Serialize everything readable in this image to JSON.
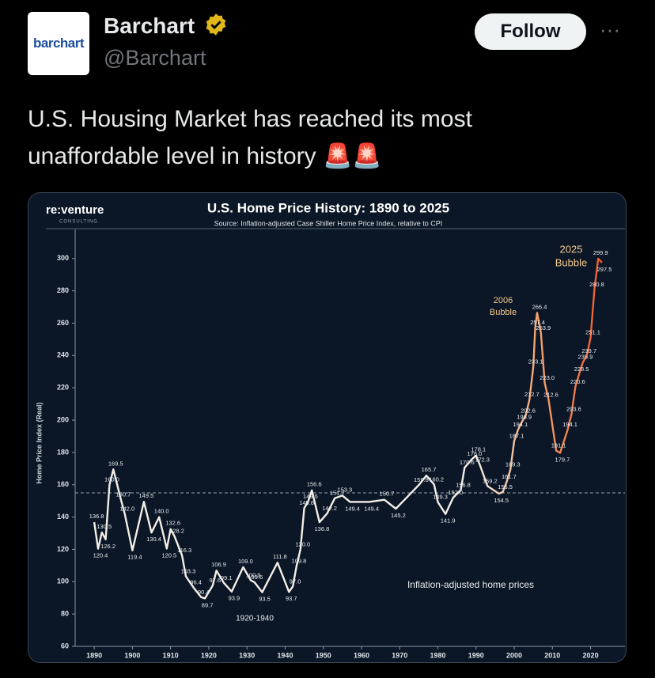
{
  "author": {
    "avatar_text": "barchart",
    "name": "Barchart",
    "handle": "@Barchart"
  },
  "follow_button": "Follow",
  "more_button": "···",
  "tweet": {
    "text": "U.S. Housing Market has reached its most unaffordable level in history 🚨🚨"
  },
  "chart_data": {
    "type": "line",
    "brand": "re:venture",
    "brand_sub": "CONSULTING",
    "title": "U.S. Home Price History: 1890 to 2025",
    "subtitle": "Source: Inflation-adjusted Case Shiller Home Price Index, relative to CPI",
    "y_label": "Home Price Index (Real)",
    "annotations": [
      "2025",
      "Bubble",
      "2006",
      "Bubble",
      "1920-1940"
    ],
    "x": [
      1890,
      1891,
      1892,
      1893,
      1894,
      1895,
      1897,
      1898,
      1900,
      1903,
      1905,
      1907,
      1909,
      1910,
      1911,
      1913,
      1914,
      1916,
      1918,
      1919,
      1921,
      1922,
      1924,
      1926,
      1929,
      1931,
      1932,
      1934,
      1938,
      1941,
      1942,
      1943,
      1944,
      1945,
      1946,
      1947,
      1949,
      1951,
      1953,
      1955,
      1957,
      1962,
      1966,
      1969,
      1975,
      1977,
      1979,
      1980,
      1982,
      1984,
      1986,
      1987,
      1989,
      1990,
      1991,
      1993,
      1996,
      1997,
      1998,
      1999,
      2000,
      2001,
      2002,
      2003,
      2004,
      2005,
      2005.5,
      2006,
      2007,
      2008,
      2009,
      2011,
      2012,
      2014,
      2015,
      2016,
      2017,
      2018,
      2019,
      2020,
      2021,
      2022,
      2023
    ],
    "series": [
      {
        "name": "Inflation-adjusted home prices",
        "color": [
          "#f3eee6",
          "#f4a06a",
          "#ef5a2b"
        ],
        "values": [
          136.8,
          120.4,
          130.5,
          126.2,
          160.0,
          169.5,
          150.7,
          142.0,
          119.4,
          149.5,
          130.4,
          140.0,
          120.5,
          132.6,
          128.2,
          116.3,
          103.3,
          96.4,
          90.4,
          89.7,
          97.6,
          106.9,
          99.1,
          93.9,
          109.0,
          100.9,
          99.6,
          93.5,
          111.8,
          93.7,
          97.0,
          109.8,
          120.0,
          145.6,
          149.5,
          156.6,
          136.8,
          142.2,
          151.7,
          153.3,
          149.4,
          149.4,
          150.7,
          145.2,
          159.8,
          165.7,
          160.2,
          149.3,
          141.9,
          152.0,
          156.8,
          170.6,
          176.0,
          178.1,
          172.3,
          159.2,
          154.5,
          155.5,
          161.7,
          169.3,
          187.1,
          194.1,
          198.9,
          202.6,
          212.7,
          233.1,
          257.4,
          266.4,
          253.9,
          223.0,
          212.6,
          181.1,
          179.7,
          194.1,
          203.6,
          220.6,
          228.5,
          235.9,
          239.7,
          251.1,
          280.8,
          299.9,
          297.5
        ],
        "value_labels": [
          "136.8",
          "120.4",
          "130.5",
          "126.2",
          "160.0",
          "169.5",
          "150.7",
          "142.0",
          "119.4",
          "149.5",
          "130.4",
          "140.0",
          "120.5",
          "132.6",
          "128.2",
          "116.3",
          "103.3",
          "96.4",
          "90.4",
          "89.7",
          "97.6",
          "106.9",
          "99.1",
          "93.9",
          "109.0",
          "100.9",
          "99.6",
          "93.5",
          "111.8",
          "93.7",
          "97.0",
          "109.8",
          "120.0",
          "145.6",
          "149.5",
          "156.6",
          "136.8",
          "142.2",
          "151.7",
          "153.3",
          "149.4",
          "149.4",
          "150.7",
          "145.2",
          "159.8",
          "165.7",
          "160.2",
          "149.3",
          "141.9",
          "152.0",
          "156.8",
          "170.6",
          "176.0",
          "178.1",
          "172.3",
          "159.2",
          "154.5",
          "155.5",
          "161.7",
          "169.3",
          "187.1",
          "194.1",
          "198.9",
          "202.6",
          "212.7",
          "233.1",
          "257.4",
          "266.4",
          "253.9",
          "223.0",
          "212.6",
          "181.1",
          "179.7",
          "194.1",
          "203.6",
          "220.6",
          "228.5",
          "235.9",
          "239.7",
          "251.1",
          "280.8",
          "299.9",
          "297.5"
        ]
      }
    ],
    "reference_line": 155,
    "xlim": [
      1885,
      2029
    ],
    "ylim": [
      60,
      318
    ],
    "xticks": [
      1890,
      1900,
      1910,
      1920,
      1930,
      1940,
      1950,
      1960,
      1970,
      1980,
      1990,
      2000,
      2010,
      2020
    ],
    "yticks": [
      60,
      80,
      100,
      120,
      140,
      160,
      180,
      200,
      220,
      240,
      260,
      280,
      300
    ]
  }
}
